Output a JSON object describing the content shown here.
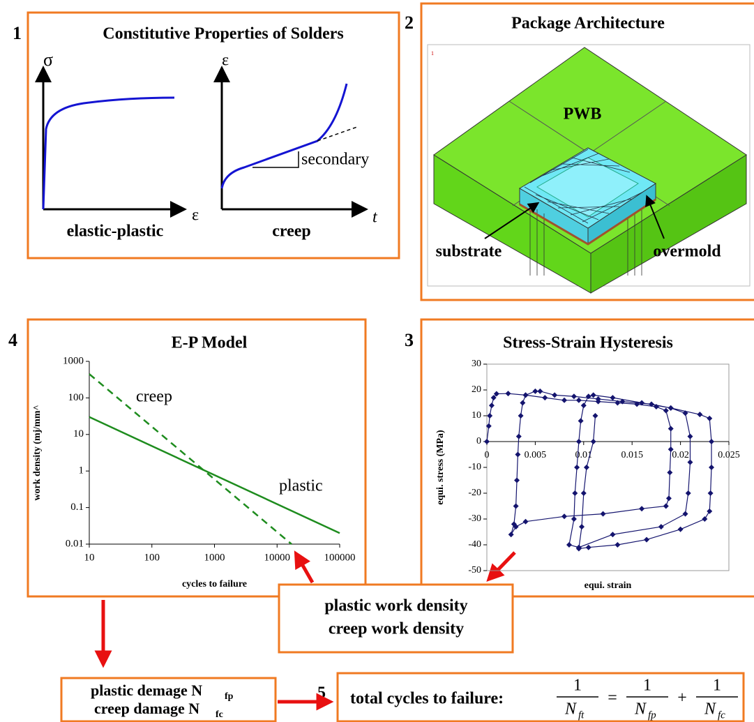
{
  "panel1": {
    "number": "1",
    "title": "Constitutive Properties of Solders",
    "left": {
      "y_symbol": "σ",
      "x_symbol": "ε",
      "caption": "elastic-plastic"
    },
    "right": {
      "y_symbol": "ε",
      "x_symbol": "t",
      "slope_label": "secondary",
      "caption": "creep"
    }
  },
  "panel2": {
    "number": "2",
    "title": "Package Architecture",
    "corner_mark": "1",
    "labels": {
      "board": "PWB",
      "substrate": "substrate",
      "overmold": "overmold"
    }
  },
  "panel3": {
    "number": "3"
  },
  "panel4": {
    "number": "4"
  },
  "work_box": {
    "lines": [
      "plastic work density",
      "creep work density"
    ]
  },
  "damage_box": {
    "lines": [
      {
        "text": "plastic demage N",
        "sub": "fp"
      },
      {
        "text": "creep damage N",
        "sub": "fc"
      }
    ]
  },
  "panel5": {
    "number": "5",
    "label": "total cycles to failure:",
    "equals": "=",
    "plus": "+",
    "fractions": [
      {
        "num": "1",
        "den": "N",
        "sub": "ft"
      },
      {
        "num": "1",
        "den": "N",
        "sub": "fp"
      },
      {
        "num": "1",
        "den": "N",
        "sub": "fc"
      }
    ]
  },
  "chart_data": [
    {
      "type": "line",
      "title": "E-P Model",
      "x_label": "cycles to failure",
      "y_label": "work density (mj/mm^",
      "xscale": "log",
      "yscale": "log",
      "xlim": [
        10,
        100000
      ],
      "ylim": [
        0.01,
        1000
      ],
      "xticks": [
        10,
        100,
        1000,
        10000,
        100000
      ],
      "yticks": [
        0.01,
        0.1,
        1,
        10,
        100,
        1000
      ],
      "series": [
        {
          "name": "plastic",
          "color": "#1e8c1e",
          "style": "solid",
          "x": [
            10,
            100000
          ],
          "values": [
            30,
            0.02
          ]
        },
        {
          "name": "creep",
          "color": "#1e8c1e",
          "style": "dashed",
          "x": [
            10,
            17000
          ],
          "values": [
            450,
            0.01
          ]
        }
      ]
    },
    {
      "type": "line",
      "title": "Stress-Strain Hysteresis",
      "x_label": "equi. strain",
      "y_label": "equi. stress (MPa)",
      "xlim": [
        0,
        0.025
      ],
      "ylim": [
        -50,
        30
      ],
      "xticks": [
        0,
        0.005,
        0.01,
        0.015,
        0.02,
        0.025
      ],
      "yticks": [
        -50,
        -40,
        -30,
        -20,
        -10,
        0,
        10,
        20,
        30
      ],
      "series": [
        {
          "color": "#14146e",
          "marker": "diamond",
          "x": [
            0,
            0.0002,
            0.0003,
            0.0005,
            0.0007,
            0.001,
            0.0022,
            0.004,
            0.006,
            0.008,
            0.0095,
            0.0115,
            0.0135,
            0.0155,
            0.0175,
            0.0185,
            0.019,
            0.019,
            0.0189,
            0.0188,
            0.0185,
            0.016,
            0.012,
            0.008,
            0.004,
            0.003,
            0.0025,
            0.0028,
            0.003,
            0.0031,
            0.0032,
            0.0033,
            0.0035,
            0.0037,
            0.004,
            0.005,
            0.0055,
            0.007,
            0.009,
            0.0115,
            0.014,
            0.017,
            0.019,
            0.0205,
            0.021,
            0.021,
            0.0208,
            0.0205,
            0.018,
            0.013,
            0.0095,
            0.0085,
            0.009,
            0.0091,
            0.0093,
            0.0095,
            0.0097,
            0.01,
            0.0105,
            0.011,
            0.013,
            0.016,
            0.019,
            0.022,
            0.023,
            0.0232,
            0.0232,
            0.0231,
            0.023,
            0.0225,
            0.02,
            0.0165,
            0.0135,
            0.0105,
            0.0095,
            0.0098,
            0.01,
            0.0103,
            0.011,
            0.0112
          ],
          "values": [
            0,
            6,
            10,
            14,
            17,
            18.5,
            18.6,
            18,
            17,
            16,
            16,
            15.5,
            15,
            14.5,
            13.5,
            12,
            5,
            -3,
            -12,
            -22,
            -25,
            -26,
            -28,
            -29,
            -31,
            -33,
            -36,
            -32,
            -25,
            -15,
            -5,
            2,
            10,
            15,
            18,
            19.5,
            19.5,
            18,
            17.5,
            16.5,
            15.5,
            14.5,
            13,
            11,
            2,
            -8,
            -20,
            -28,
            -33,
            -36,
            -41,
            -40,
            -30,
            -20,
            -10,
            0,
            8,
            14,
            17.5,
            18,
            17,
            15,
            13,
            10.5,
            9,
            0,
            -10,
            -20,
            -27,
            -30,
            -34,
            -38,
            -40,
            -41,
            -41.5,
            -33,
            -20,
            -10,
            0,
            10
          ]
        }
      ]
    }
  ]
}
